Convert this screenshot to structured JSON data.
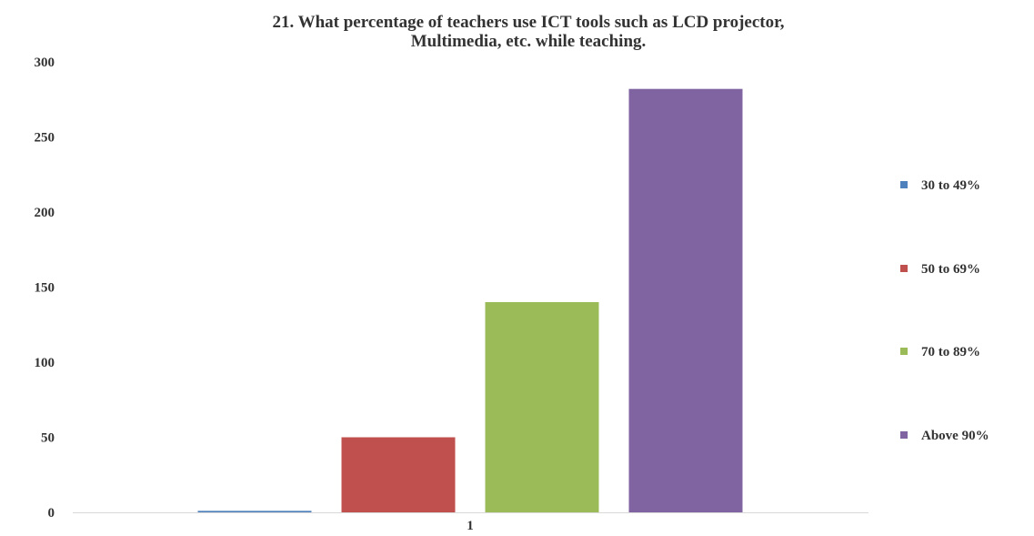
{
  "chart_data": {
    "type": "bar",
    "title_lines": [
      "21. What  percentage of teachers use ICT tools such as LCD projector,",
      "Multimedia, etc. while teaching."
    ],
    "categories": [
      "1"
    ],
    "series": [
      {
        "name": "30 to 49%",
        "values": [
          1
        ],
        "color": "#4F81BD"
      },
      {
        "name": "50 to 69%",
        "values": [
          50
        ],
        "color": "#C0504D"
      },
      {
        "name": "70 to 89%",
        "values": [
          140
        ],
        "color": "#9BBB59"
      },
      {
        "name": "Above 90%",
        "values": [
          282
        ],
        "color": "#8064A2"
      }
    ],
    "ylim": [
      0,
      300
    ],
    "yticks": [
      0,
      50,
      100,
      150,
      200,
      250,
      300
    ],
    "xlabel": "",
    "ylabel": "",
    "grid": false,
    "legend_position": "right"
  }
}
